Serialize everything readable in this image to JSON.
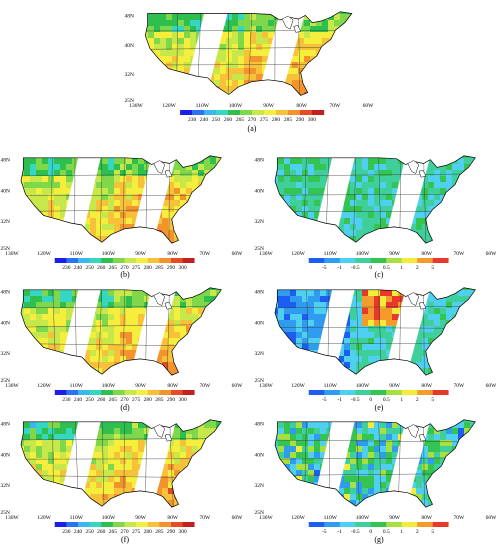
{
  "lon_ticks": [
    "130W",
    "120W",
    "110W",
    "100W",
    "90W",
    "80W",
    "70W",
    "60W"
  ],
  "lat_ticks": [
    "48N",
    "40N",
    "32N",
    "25N"
  ],
  "temp_colorbar": {
    "labels": [
      "230",
      "240",
      "250",
      "260",
      "265",
      "270",
      "275",
      "280",
      "285",
      "290",
      "300"
    ],
    "colors": [
      "#1b1ee6",
      "#2b72f0",
      "#3ab7f0",
      "#35d6c2",
      "#2fbf4f",
      "#7fd84a",
      "#c6e84a",
      "#f5ee3d",
      "#f7c23a",
      "#f2932e",
      "#e84a25",
      "#c41f1f"
    ]
  },
  "diff_colorbar": {
    "labels": [
      "-5",
      "-1",
      "-0.5",
      "0",
      "0.5",
      "1",
      "2",
      "5"
    ],
    "colors": [
      "#1c5ef0",
      "#2f9cf0",
      "#4fd0f0",
      "#3ecf9a",
      "#34c452",
      "#a6e040",
      "#f3ec3a",
      "#f59b2e",
      "#e8382a"
    ]
  },
  "panels": [
    {
      "id": "a",
      "caption": "(a)",
      "kind": "temp"
    },
    {
      "id": "b",
      "caption": "(b)",
      "kind": "temp"
    },
    {
      "id": "c",
      "caption": "(c)",
      "kind": "diff"
    },
    {
      "id": "d",
      "caption": "(d)",
      "kind": "temp"
    },
    {
      "id": "e",
      "caption": "(e)",
      "kind": "diff"
    },
    {
      "id": "f",
      "caption": "(f)",
      "kind": "temp"
    },
    {
      "id": "g",
      "caption": "(g)",
      "kind": "diff"
    }
  ]
}
